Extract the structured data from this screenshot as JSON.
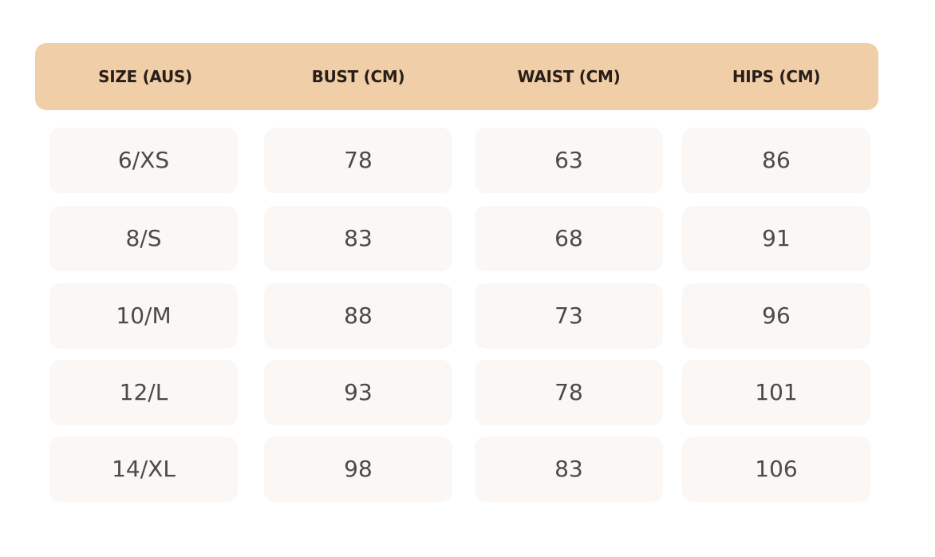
{
  "table": {
    "headers": [
      "SIZE (AUS)",
      "BUST (CM)",
      "WAIST (CM)",
      "HIPS (CM)"
    ],
    "rows": [
      [
        "6/XS",
        "78",
        "63",
        "86"
      ],
      [
        "8/S",
        "83",
        "68",
        "91"
      ],
      [
        "10/M",
        "88",
        "73",
        "96"
      ],
      [
        "12/L",
        "93",
        "78",
        "101"
      ],
      [
        "14/XL",
        "98",
        "83",
        "106"
      ]
    ]
  },
  "colors": {
    "header_bg": "#f0cfa8",
    "cell_bg": "#faf7f5"
  }
}
